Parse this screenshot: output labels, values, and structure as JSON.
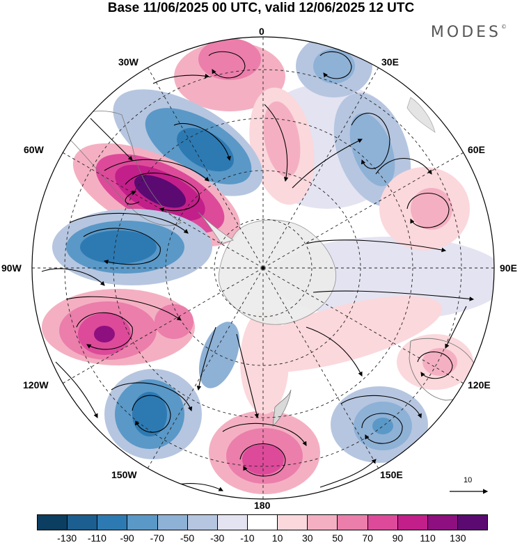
{
  "title": "Base 11/06/2025 00 UTC, valid 12/06/2025 12 UTC",
  "brand": "MODES",
  "brand_mark": "©",
  "longitude_labels": {
    "lon_0": "0",
    "lon_30e": "30E",
    "lon_60e": "60E",
    "lon_90e": "90E",
    "lon_120e": "120E",
    "lon_150e": "150E",
    "lon_180": "180",
    "lon_150w": "150W",
    "lon_120w": "120W",
    "lon_90w": "90W",
    "lon_60w": "60W",
    "lon_30w": "30W"
  },
  "reference_vector": {
    "label": "10"
  },
  "colorbar": {
    "colors": [
      "#0b3e61",
      "#1c5e8f",
      "#2d7ab3",
      "#5a98c7",
      "#8eb1d6",
      "#b6c6e0",
      "#e4e3f1",
      "#ffffff",
      "#fbd8dc",
      "#f4b0c2",
      "#eb7eab",
      "#dd4a9a",
      "#c21f8a",
      "#8e0f7f",
      "#5b0a72"
    ],
    "tick_labels": [
      "-130",
      "-110",
      "-90",
      "-70",
      "-50",
      "-30",
      "-10",
      "10",
      "30",
      "50",
      "70",
      "90",
      "110",
      "130"
    ]
  },
  "features": {
    "anomalies": [
      {
        "name": "low-anomaly-atlantic-north",
        "value": -70
      },
      {
        "name": "high-anomaly-south-america-west",
        "value": 130
      },
      {
        "name": "low-anomaly-drake-passage",
        "value": -90
      },
      {
        "name": "high-anomaly-south-pacific",
        "value": 90
      },
      {
        "name": "low-anomaly-south-pacific",
        "value": -70
      },
      {
        "name": "high-anomaly-ross-sea",
        "value": 70
      },
      {
        "name": "low-anomaly-tasman-sea",
        "value": -50
      },
      {
        "name": "high-anomaly-south-atlantic",
        "value": 70
      },
      {
        "name": "high-anomaly-indian-ocean",
        "value": 50
      }
    ]
  }
}
